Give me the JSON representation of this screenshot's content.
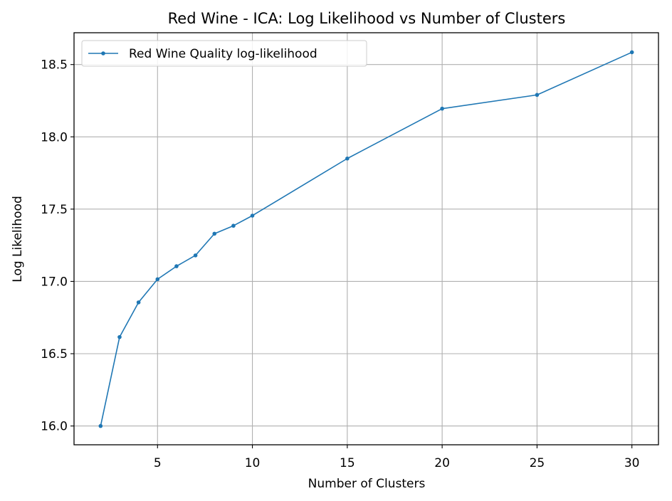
{
  "chart_data": {
    "type": "line",
    "title": "Red Wine - ICA: Log Likelihood vs Number of Clusters",
    "xlabel": "Number of Clusters",
    "ylabel": "Log Likelihood",
    "xlim": [
      0.6,
      31.4
    ],
    "ylim": [
      15.87,
      18.72
    ],
    "xticks": [
      5,
      10,
      15,
      20,
      25,
      30
    ],
    "yticks": [
      16.0,
      16.5,
      17.0,
      17.5,
      18.0,
      18.5
    ],
    "xtick_labels": [
      "5",
      "10",
      "15",
      "20",
      "25",
      "30"
    ],
    "ytick_labels": [
      "16.0",
      "16.5",
      "17.0",
      "17.5",
      "18.0",
      "18.5"
    ],
    "grid": true,
    "legend_position": "top-left",
    "series": [
      {
        "name": "Red Wine Quality log-likelihood",
        "color": "#1f77b4",
        "marker": "circle",
        "x": [
          2,
          3,
          4,
          5,
          6,
          7,
          8,
          9,
          10,
          15,
          20,
          25,
          30
        ],
        "y": [
          16.0,
          16.615,
          16.855,
          17.015,
          17.105,
          17.18,
          17.33,
          17.385,
          17.455,
          17.85,
          18.195,
          18.29,
          18.585
        ]
      }
    ]
  }
}
